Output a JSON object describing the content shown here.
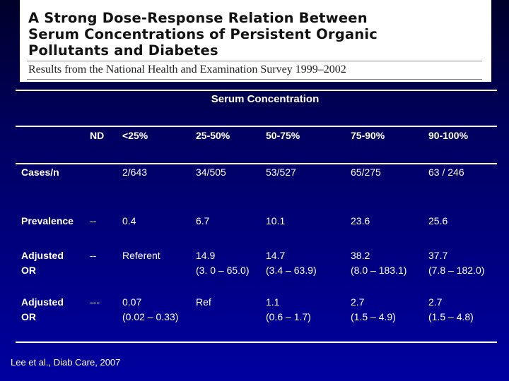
{
  "header": {
    "title": "A Strong Dose-Response Relation Between\nSerum Concentrations of Persistent Organic\nPollutants and Diabetes",
    "subtitle": "Results from the National Health and Examination Survey 1999–2002"
  },
  "table": {
    "group_header": "Serum Concentration",
    "columns": [
      "",
      "ND",
      "<25%",
      "25-50%",
      "50-75%",
      "75-90%",
      "90-100%"
    ],
    "rows": [
      {
        "label": [
          "Cases/n"
        ],
        "cells": [
          [
            ""
          ],
          [
            "2/643"
          ],
          [
            "34/505"
          ],
          [
            "53/527"
          ],
          [
            "65/275"
          ],
          [
            "63 / 246"
          ]
        ]
      },
      {
        "label": [
          "Prevalence"
        ],
        "cells": [
          [
            "--"
          ],
          [
            "0.4"
          ],
          [
            "6.7"
          ],
          [
            "10.1"
          ],
          [
            "23.6"
          ],
          [
            "25.6"
          ]
        ]
      },
      {
        "label": [
          "Adjusted",
          "OR"
        ],
        "cells": [
          [
            "--"
          ],
          [
            "Referent"
          ],
          [
            "14.9",
            "(3. 0 – 65.0)"
          ],
          [
            "14.7",
            "(3.4 – 63.9)"
          ],
          [
            "38.2",
            "(8.0 – 183.1)"
          ],
          [
            "37.7",
            "(7.8 – 182.0)"
          ]
        ]
      },
      {
        "label": [
          "Adjusted",
          "OR"
        ],
        "cells": [
          [
            "---"
          ],
          [
            "0.07",
            "(0.02 – 0.33)"
          ],
          [
            "Ref"
          ],
          [
            "1.1",
            "(0.6 – 1.7)"
          ],
          [
            "2.7",
            "(1.5 – 4.9)"
          ],
          [
            "2.7",
            "(1.5 – 4.8)"
          ]
        ]
      }
    ]
  },
  "citation": "Lee et al., Diab Care, 2007"
}
